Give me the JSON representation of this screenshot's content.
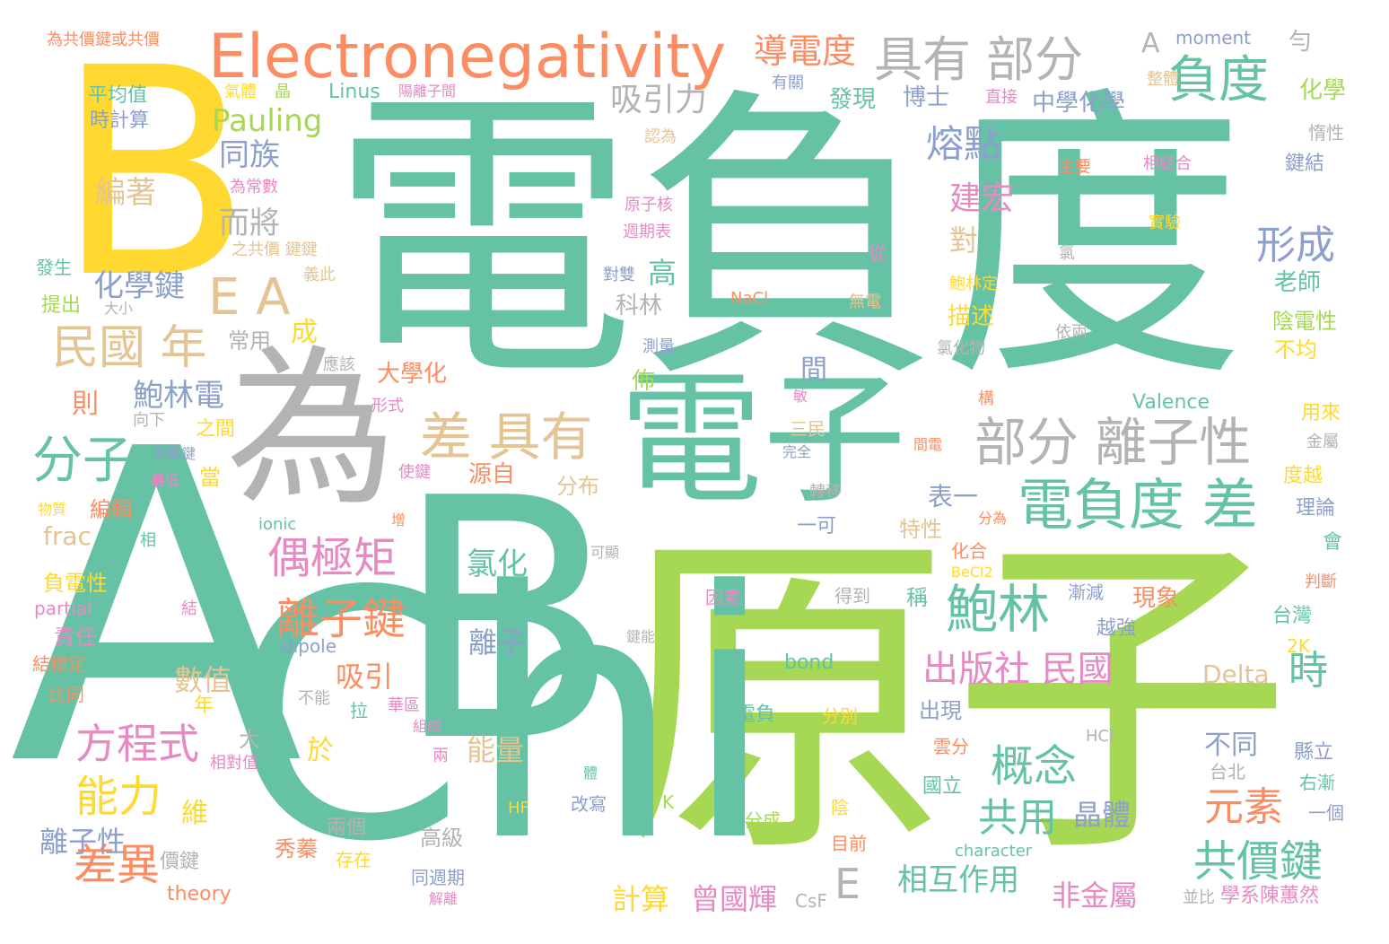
{
  "palette": {
    "teal": "#66c2a5",
    "lime": "#a6d854",
    "yellow": "#ffd92f",
    "orange": "#fc8d62",
    "gray": "#b3b3b3",
    "tan": "#e5c494",
    "blue": "#8da0cb",
    "pink": "#e78ac3"
  },
  "words": [
    {
      "text": "電負度",
      "color": "teal"
    },
    {
      "text": "原子",
      "color": "lime"
    },
    {
      "text": "Chi",
      "color": "teal"
    },
    {
      "text": "A",
      "color": "teal"
    },
    {
      "text": "B",
      "color": "teal"
    },
    {
      "text": "B",
      "color": "yellow"
    },
    {
      "text": "為",
      "color": "gray"
    },
    {
      "text": "電子",
      "color": "teal"
    },
    {
      "text": "Electronegativity",
      "color": "orange"
    },
    {
      "text": "具有 部分",
      "color": "gray"
    },
    {
      "text": "負度",
      "color": "teal"
    },
    {
      "text": "電負度 差",
      "color": "teal"
    },
    {
      "text": "部分 離子性",
      "color": "gray"
    },
    {
      "text": "差 具有",
      "color": "tan"
    },
    {
      "text": "分子",
      "color": "teal"
    },
    {
      "text": "E A",
      "color": "tan"
    },
    {
      "text": "民國 年",
      "color": "tan"
    },
    {
      "text": "鮑林",
      "color": "teal"
    },
    {
      "text": "偶極矩",
      "color": "pink"
    },
    {
      "text": "離子鍵",
      "color": "orange"
    },
    {
      "text": "概念",
      "color": "teal"
    },
    {
      "text": "方程式",
      "color": "pink"
    },
    {
      "text": "能力",
      "color": "yellow"
    },
    {
      "text": "差異",
      "color": "orange"
    },
    {
      "text": "共價鍵",
      "color": "teal"
    },
    {
      "text": "形成",
      "color": "blue"
    },
    {
      "text": "熔點",
      "color": "blue"
    },
    {
      "text": "出版社 民國",
      "color": "pink"
    },
    {
      "text": "共用",
      "color": "teal"
    },
    {
      "text": "元素",
      "color": "orange"
    },
    {
      "text": "時",
      "color": "teal"
    },
    {
      "text": "E",
      "color": "gray"
    },
    {
      "text": "Pauling",
      "color": "lime"
    },
    {
      "text": "導電度",
      "color": "orange"
    },
    {
      "text": "吸引力",
      "color": "gray"
    },
    {
      "text": "建宏",
      "color": "pink"
    },
    {
      "text": "同族",
      "color": "blue"
    },
    {
      "text": "編著",
      "color": "tan"
    },
    {
      "text": "而將",
      "color": "gray"
    },
    {
      "text": "化學鍵",
      "color": "blue"
    },
    {
      "text": "鮑林電",
      "color": "blue"
    },
    {
      "text": "相互作用",
      "color": "teal"
    },
    {
      "text": "非金屬",
      "color": "pink"
    },
    {
      "text": "曾國輝",
      "color": "pink"
    },
    {
      "text": "計算",
      "color": "yellow"
    },
    {
      "text": "晶體",
      "color": "blue"
    },
    {
      "text": "離子性",
      "color": "blue"
    },
    {
      "text": "數值",
      "color": "tan"
    },
    {
      "text": "吸引",
      "color": "orange"
    },
    {
      "text": "能量",
      "color": "tan"
    },
    {
      "text": "離子",
      "color": "blue"
    },
    {
      "text": "氯化",
      "color": "teal"
    },
    {
      "text": "Delta",
      "color": "tan"
    },
    {
      "text": "不同",
      "color": "blue"
    },
    {
      "text": "表一",
      "color": "blue"
    },
    {
      "text": "中學化學",
      "color": "blue"
    },
    {
      "text": "博士",
      "color": "blue"
    },
    {
      "text": "發現",
      "color": "teal"
    },
    {
      "text": "化學",
      "color": "lime"
    },
    {
      "text": "A",
      "color": "gray"
    },
    {
      "text": "moment",
      "color": "blue"
    },
    {
      "text": "勻",
      "color": "gray"
    },
    {
      "text": "老師",
      "color": "teal"
    },
    {
      "text": "陰電性",
      "color": "lime"
    },
    {
      "text": "不均",
      "color": "yellow"
    },
    {
      "text": "鍵結",
      "color": "blue"
    },
    {
      "text": "惰性",
      "color": "gray"
    },
    {
      "text": "平均值",
      "color": "teal"
    },
    {
      "text": "時計算",
      "color": "blue"
    },
    {
      "text": "Linus",
      "color": "teal"
    },
    {
      "text": "為共價鍵或共價",
      "color": "orange"
    },
    {
      "text": "氣體",
      "color": "yellow"
    },
    {
      "text": "晶",
      "color": "lime"
    },
    {
      "text": "陽離子間",
      "color": "pink"
    },
    {
      "text": "直接",
      "color": "pink"
    },
    {
      "text": "有關",
      "color": "blue"
    },
    {
      "text": "整體",
      "color": "tan"
    },
    {
      "text": "為常數",
      "color": "pink"
    },
    {
      "text": "之共價 鍵鍵",
      "color": "tan"
    },
    {
      "text": "義此",
      "color": "tan"
    },
    {
      "text": "發生",
      "color": "teal"
    },
    {
      "text": "提出",
      "color": "lime"
    },
    {
      "text": "大小",
      "color": "gray"
    },
    {
      "text": "常用",
      "color": "gray"
    },
    {
      "text": "成",
      "color": "yellow"
    },
    {
      "text": "則",
      "color": "orange"
    },
    {
      "text": "分布",
      "color": "tan"
    },
    {
      "text": "源自",
      "color": "orange"
    },
    {
      "text": "大學化",
      "color": "orange"
    },
    {
      "text": "佈",
      "color": "lime"
    },
    {
      "text": "間",
      "color": "blue"
    },
    {
      "text": "對",
      "color": "tan"
    },
    {
      "text": "描述",
      "color": "yellow"
    },
    {
      "text": "高",
      "color": "teal"
    },
    {
      "text": "科林",
      "color": "gray"
    },
    {
      "text": "NaCl",
      "color": "orange"
    },
    {
      "text": "無電",
      "color": "tan"
    },
    {
      "text": "從",
      "color": "pink"
    },
    {
      "text": "鮑林定",
      "color": "yellow"
    },
    {
      "text": "氯化物",
      "color": "gray"
    },
    {
      "text": "依兩",
      "color": "gray"
    },
    {
      "text": "測量",
      "color": "blue"
    },
    {
      "text": "Valence",
      "color": "teal"
    },
    {
      "text": "用來",
      "color": "yellow"
    },
    {
      "text": "金屬",
      "color": "gray"
    },
    {
      "text": "度越",
      "color": "yellow"
    },
    {
      "text": "理論",
      "color": "blue"
    },
    {
      "text": "會",
      "color": "teal"
    },
    {
      "text": "判斷",
      "color": "orange"
    },
    {
      "text": "台灣",
      "color": "teal"
    },
    {
      "text": "2K",
      "color": "yellow"
    },
    {
      "text": "縣立",
      "color": "blue"
    },
    {
      "text": "右漸",
      "color": "teal"
    },
    {
      "text": "一個",
      "color": "blue"
    },
    {
      "text": "學系陳蕙然",
      "color": "pink"
    },
    {
      "text": "並比",
      "color": "gray"
    },
    {
      "text": "CsF",
      "color": "gray"
    },
    {
      "text": "theory",
      "color": "orange"
    },
    {
      "text": "character",
      "color": "teal"
    },
    {
      "text": "HCl",
      "color": "gray"
    },
    {
      "text": "台北",
      "color": "gray"
    },
    {
      "text": "國立",
      "color": "teal"
    },
    {
      "text": "雲分",
      "color": "orange"
    },
    {
      "text": "目前",
      "color": "orange"
    },
    {
      "text": "出現",
      "color": "blue"
    },
    {
      "text": "越強",
      "color": "blue"
    },
    {
      "text": "現象",
      "color": "orange"
    },
    {
      "text": "漸減",
      "color": "blue"
    },
    {
      "text": "稱",
      "color": "teal"
    },
    {
      "text": "得到",
      "color": "gray"
    },
    {
      "text": "因素",
      "color": "pink"
    },
    {
      "text": "bond",
      "color": "teal"
    },
    {
      "text": "電負",
      "color": "teal"
    },
    {
      "text": "分別",
      "color": "yellow"
    },
    {
      "text": "分成",
      "color": "lime"
    },
    {
      "text": "K",
      "color": "lime"
    },
    {
      "text": "陰",
      "color": "yellow"
    },
    {
      "text": "HF",
      "color": "yellow"
    },
    {
      "text": "改寫",
      "color": "blue"
    },
    {
      "text": "同週期",
      "color": "blue"
    },
    {
      "text": "解離",
      "color": "pink"
    },
    {
      "text": "高級",
      "color": "gray"
    },
    {
      "text": "兩個",
      "color": "gray"
    },
    {
      "text": "存在",
      "color": "yellow"
    },
    {
      "text": "秀蓁",
      "color": "orange"
    },
    {
      "text": "價鍵",
      "color": "gray"
    },
    {
      "text": "維",
      "color": "yellow"
    },
    {
      "text": "於",
      "color": "yellow"
    },
    {
      "text": "年",
      "color": "yellow"
    },
    {
      "text": "大",
      "color": "gray"
    },
    {
      "text": "不能",
      "color": "gray"
    },
    {
      "text": "拉",
      "color": "teal"
    },
    {
      "text": "華區",
      "color": "pink"
    },
    {
      "text": "組成",
      "color": "pink"
    },
    {
      "text": "兩",
      "color": "pink"
    },
    {
      "text": "體",
      "color": "teal"
    },
    {
      "text": "相對值",
      "color": "pink"
    },
    {
      "text": "比同",
      "color": "orange"
    },
    {
      "text": "結穩定",
      "color": "orange"
    },
    {
      "text": "責任",
      "color": "pink"
    },
    {
      "text": "dipole",
      "color": "blue"
    },
    {
      "text": "結",
      "color": "pink"
    },
    {
      "text": "partial",
      "color": "pink"
    },
    {
      "text": "負電性",
      "color": "yellow"
    },
    {
      "text": "相",
      "color": "teal"
    },
    {
      "text": "物質",
      "color": "yellow"
    },
    {
      "text": "最低",
      "color": "pink"
    },
    {
      "text": "金屬鍵",
      "color": "blue"
    },
    {
      "text": "向下",
      "color": "gray"
    },
    {
      "text": "之間",
      "color": "yellow"
    },
    {
      "text": "當",
      "color": "yellow"
    },
    {
      "text": "編輯",
      "color": "orange"
    },
    {
      "text": "frac",
      "color": "tan"
    },
    {
      "text": "ionic",
      "color": "teal"
    },
    {
      "text": "增",
      "color": "orange"
    },
    {
      "text": "使鍵",
      "color": "pink"
    },
    {
      "text": "可顯",
      "color": "gray"
    },
    {
      "text": "鍵能",
      "color": "gray"
    },
    {
      "text": "轉移",
      "color": "gray"
    },
    {
      "text": "完全",
      "color": "blue"
    },
    {
      "text": "一可",
      "color": "blue"
    },
    {
      "text": "化合",
      "color": "orange"
    },
    {
      "text": "BeCl2",
      "color": "yellow"
    },
    {
      "text": "特性",
      "color": "tan"
    },
    {
      "text": "分為",
      "color": "orange"
    },
    {
      "text": "三民",
      "color": "tan"
    },
    {
      "text": "間電",
      "color": "orange"
    },
    {
      "text": "構",
      "color": "orange"
    },
    {
      "text": "敏",
      "color": "pink"
    },
    {
      "text": "應該",
      "color": "gray"
    },
    {
      "text": "形式",
      "color": "pink"
    },
    {
      "text": "對雙",
      "color": "blue"
    },
    {
      "text": "週期表",
      "color": "pink"
    },
    {
      "text": "原子核",
      "color": "pink"
    },
    {
      "text": "氯",
      "color": "gray"
    },
    {
      "text": "實驗",
      "color": "yellow"
    },
    {
      "text": "相結合",
      "color": "pink"
    },
    {
      "text": "主要",
      "color": "orange"
    },
    {
      "text": "認為",
      "color": "tan"
    }
  ]
}
